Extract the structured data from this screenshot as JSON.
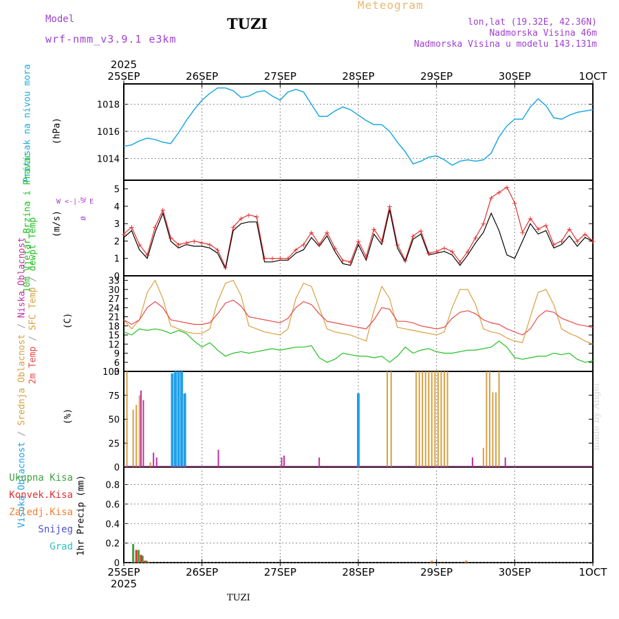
{
  "header": {
    "model_label": "Model",
    "model_name": "wrf-nmm_v3.9.1 e3km",
    "station": "TUZI",
    "title": "Meteogram",
    "lonlat": "lon,lat (19.32E, 42.36N)",
    "altitude": "Nadmorska Visina 46m",
    "model_altitude": "Nadmorska Visina u modelu 143.131m"
  },
  "footer": {
    "station": "TUZI",
    "credit": "made by Angel",
    "year": "2025"
  },
  "colors": {
    "pressure": "#20a8e0",
    "wind_speed": "#000000",
    "wind_gust": "#e03030",
    "temp_2m": "#e84848",
    "temp_sfc": "#d8a040",
    "dewpoint": "#20c020",
    "cloud_high": "#20a0e8",
    "cloud_mid": "#d8a040",
    "cloud_low": "#c030a0",
    "precip_total": "#40a040",
    "precip_conv": "#e03030",
    "precip_frz": "#f08030",
    "snow": "#5050d0",
    "hail": "#30c0c0"
  },
  "chart_data": [
    {
      "type": "line",
      "title": "Pritisak na nivou mora",
      "ylabel": "(hPa)",
      "ylim": [
        1012.4,
        1019.5
      ],
      "yticks": [
        1014,
        1016,
        1018
      ],
      "x_axis": {
        "ticks": [
          "25SEP",
          "26SEP",
          "27SEP",
          "28SEP",
          "29SEP",
          "30SEP",
          "1OCT"
        ],
        "year": "2025",
        "range_days": [
          0,
          6
        ]
      },
      "series": [
        {
          "name": "Pritisak na nivou mora",
          "x": [
            0,
            0.1,
            0.2,
            0.3,
            0.4,
            0.5,
            0.6,
            0.7,
            0.8,
            0.9,
            1.0,
            1.1,
            1.2,
            1.3,
            1.4,
            1.5,
            1.6,
            1.7,
            1.8,
            1.9,
            2.0,
            2.1,
            2.2,
            2.3,
            2.4,
            2.5,
            2.6,
            2.7,
            2.8,
            2.9,
            3.0,
            3.1,
            3.2,
            3.3,
            3.4,
            3.5,
            3.6,
            3.7,
            3.8,
            3.9,
            4.0,
            4.1,
            4.2,
            4.3,
            4.4,
            4.5,
            4.6,
            4.7,
            4.8,
            4.9,
            5.0,
            5.1,
            5.2,
            5.3,
            5.4,
            5.5,
            5.6,
            5.7,
            5.8,
            5.9,
            6.0
          ],
          "values": [
            1014.9,
            1015.0,
            1015.3,
            1015.5,
            1015.4,
            1015.2,
            1015.1,
            1015.9,
            1016.8,
            1017.6,
            1018.3,
            1018.8,
            1019.2,
            1019.2,
            1019.0,
            1018.5,
            1018.6,
            1018.9,
            1019.0,
            1018.6,
            1018.3,
            1018.9,
            1019.1,
            1018.9,
            1018.0,
            1017.1,
            1017.1,
            1017.5,
            1017.8,
            1017.6,
            1017.2,
            1016.8,
            1016.5,
            1016.5,
            1016.0,
            1015.2,
            1014.5,
            1013.6,
            1013.8,
            1014.1,
            1014.2,
            1013.9,
            1013.5,
            1013.8,
            1013.9,
            1013.8,
            1013.9,
            1014.4,
            1015.6,
            1016.4,
            1016.9,
            1016.9,
            1017.8,
            1018.4,
            1017.9,
            1017.0,
            1016.9,
            1017.2,
            1017.4,
            1017.5,
            1017.6
          ]
        }
      ]
    },
    {
      "type": "line",
      "title": "10m Vjetar Brzina i Pravac",
      "ylabel": "(m/s)",
      "ylim": [
        0,
        5.5
      ],
      "yticks": [
        0,
        1,
        2,
        3,
        4,
        5
      ],
      "compass_legend": [
        "Z",
        "W <-|-> E",
        "Ø"
      ],
      "x_axis": {
        "ticks": [
          "25SEP",
          "26SEP",
          "27SEP",
          "28SEP",
          "29SEP",
          "30SEP",
          "1OCT"
        ],
        "range_days": [
          0,
          6
        ]
      },
      "series": [
        {
          "name": "10m wind speed",
          "x": [
            0,
            0.1,
            0.2,
            0.3,
            0.4,
            0.5,
            0.6,
            0.7,
            0.8,
            0.9,
            1.0,
            1.1,
            1.2,
            1.3,
            1.4,
            1.5,
            1.6,
            1.7,
            1.8,
            1.9,
            2.0,
            2.1,
            2.2,
            2.3,
            2.4,
            2.5,
            2.6,
            2.7,
            2.8,
            2.9,
            3.0,
            3.1,
            3.2,
            3.3,
            3.4,
            3.5,
            3.6,
            3.7,
            3.8,
            3.9,
            4.0,
            4.1,
            4.2,
            4.3,
            4.4,
            4.5,
            4.6,
            4.7,
            4.8,
            4.9,
            5.0,
            5.1,
            5.2,
            5.3,
            5.4,
            5.5,
            5.6,
            5.7,
            5.8,
            5.9,
            6.0
          ],
          "values": [
            2.2,
            2.6,
            1.5,
            1.0,
            2.5,
            3.6,
            2.0,
            1.6,
            1.8,
            1.7,
            1.7,
            1.6,
            1.3,
            0.4,
            2.6,
            3.0,
            3.1,
            3.1,
            0.8,
            0.8,
            0.9,
            0.9,
            1.3,
            1.5,
            2.2,
            1.7,
            2.3,
            1.4,
            0.7,
            0.6,
            1.8,
            0.9,
            2.4,
            1.8,
            3.8,
            1.6,
            0.8,
            2.1,
            2.4,
            1.2,
            1.3,
            1.4,
            1.2,
            0.6,
            1.2,
            1.9,
            2.5,
            3.6,
            2.6,
            1.2,
            1.0,
            2.0,
            3.0,
            2.4,
            2.6,
            1.6,
            1.8,
            2.3,
            1.7,
            2.2,
            2.0
          ]
        },
        {
          "name": "10m wind gust",
          "x": [
            0,
            0.1,
            0.2,
            0.3,
            0.4,
            0.5,
            0.6,
            0.7,
            0.8,
            0.9,
            1.0,
            1.1,
            1.2,
            1.3,
            1.4,
            1.5,
            1.6,
            1.7,
            1.8,
            1.9,
            2.0,
            2.1,
            2.2,
            2.3,
            2.4,
            2.5,
            2.6,
            2.7,
            2.8,
            2.9,
            3.0,
            3.1,
            3.2,
            3.3,
            3.4,
            3.5,
            3.6,
            3.7,
            3.8,
            3.9,
            4.0,
            4.1,
            4.2,
            4.3,
            4.4,
            4.5,
            4.6,
            4.7,
            4.8,
            4.9,
            5.0,
            5.1,
            5.2,
            5.3,
            5.4,
            5.5,
            5.6,
            5.7,
            5.8,
            5.9,
            6.0
          ],
          "values": [
            2.4,
            2.8,
            1.8,
            1.2,
            2.8,
            3.8,
            2.2,
            1.8,
            1.9,
            2.0,
            1.9,
            1.8,
            1.5,
            0.5,
            2.8,
            3.3,
            3.5,
            3.4,
            1.0,
            1.0,
            1.0,
            1.0,
            1.5,
            1.8,
            2.5,
            1.8,
            2.5,
            1.6,
            0.9,
            0.8,
            2.0,
            1.1,
            2.7,
            2.0,
            4.0,
            1.8,
            0.9,
            2.3,
            2.6,
            1.3,
            1.4,
            1.6,
            1.4,
            0.8,
            1.4,
            2.2,
            3.0,
            4.5,
            4.8,
            5.1,
            4.2,
            2.5,
            3.3,
            2.7,
            2.9,
            1.8,
            2.0,
            2.7,
            2.0,
            2.4,
            2.0
          ]
        }
      ]
    },
    {
      "type": "line",
      "title": "2m Temp / SFC Temp / dewpt Temp",
      "ylabel": "(C)",
      "ylim": [
        3,
        34.5
      ],
      "yticks": [
        3,
        6,
        9,
        12,
        15,
        18,
        21,
        24,
        27,
        30,
        33
      ],
      "x_axis": {
        "ticks": [
          "25SEP",
          "26SEP",
          "27SEP",
          "28SEP",
          "29SEP",
          "30SEP",
          "1OCT"
        ],
        "range_days": [
          0,
          6
        ]
      },
      "series": [
        {
          "name": "2m Temp",
          "x": [
            0,
            0.1,
            0.2,
            0.3,
            0.4,
            0.5,
            0.6,
            0.7,
            0.8,
            0.9,
            1.0,
            1.1,
            1.2,
            1.3,
            1.4,
            1.5,
            1.6,
            1.7,
            1.8,
            1.9,
            2.0,
            2.1,
            2.2,
            2.3,
            2.4,
            2.5,
            2.6,
            2.7,
            2.8,
            2.9,
            3.0,
            3.1,
            3.2,
            3.3,
            3.4,
            3.5,
            3.6,
            3.7,
            3.8,
            3.9,
            4.0,
            4.1,
            4.2,
            4.3,
            4.4,
            4.5,
            4.6,
            4.7,
            4.8,
            4.9,
            5.0,
            5.1,
            5.2,
            5.3,
            5.4,
            5.5,
            5.6,
            5.7,
            5.8,
            5.9,
            6.0
          ],
          "values": [
            20,
            18.5,
            20,
            24,
            26,
            24,
            20,
            19.5,
            19,
            18.5,
            18.5,
            19,
            22,
            25.5,
            26.5,
            24.5,
            21,
            20.5,
            20,
            19.5,
            19,
            20.5,
            24,
            26,
            25,
            22,
            19.5,
            19,
            18.5,
            18,
            17.5,
            17,
            20,
            24,
            23.5,
            19.5,
            19.5,
            19,
            18,
            17.5,
            17,
            17.5,
            20.5,
            22.5,
            23,
            22,
            20,
            19,
            18.5,
            17,
            16,
            15,
            17,
            21,
            23,
            22.5,
            20.5,
            19.5,
            18.5,
            18,
            17.5
          ]
        },
        {
          "name": "SFC Temp",
          "x": [
            0,
            0.1,
            0.2,
            0.3,
            0.4,
            0.5,
            0.6,
            0.7,
            0.8,
            0.9,
            1.0,
            1.1,
            1.2,
            1.3,
            1.4,
            1.5,
            1.6,
            1.7,
            1.8,
            1.9,
            2.0,
            2.1,
            2.2,
            2.3,
            2.4,
            2.5,
            2.6,
            2.7,
            2.8,
            2.9,
            3.0,
            3.1,
            3.2,
            3.3,
            3.4,
            3.5,
            3.6,
            3.7,
            3.8,
            3.9,
            4.0,
            4.1,
            4.2,
            4.3,
            4.4,
            4.5,
            4.6,
            4.7,
            4.8,
            4.9,
            5.0,
            5.1,
            5.2,
            5.3,
            5.4,
            5.5,
            5.6,
            5.7,
            5.8,
            5.9,
            6.0
          ],
          "values": [
            20,
            17,
            20,
            29,
            33,
            27,
            18,
            17,
            16,
            15.5,
            15.5,
            17,
            26,
            32,
            33,
            28,
            18,
            17,
            16,
            15.5,
            15,
            17,
            27,
            32,
            31,
            24,
            17,
            16,
            15.5,
            15,
            14,
            13,
            23,
            31,
            27,
            17.5,
            17,
            16.5,
            16,
            15.5,
            15,
            16,
            24,
            30,
            30,
            25,
            17,
            16,
            15.5,
            14,
            13,
            12.5,
            21,
            29,
            30,
            25,
            17,
            15.5,
            14.5,
            13,
            12
          ]
        },
        {
          "name": "dewpt Temp",
          "x": [
            0,
            0.1,
            0.2,
            0.3,
            0.4,
            0.5,
            0.6,
            0.7,
            0.8,
            0.9,
            1.0,
            1.1,
            1.2,
            1.3,
            1.4,
            1.5,
            1.6,
            1.7,
            1.8,
            1.9,
            2.0,
            2.1,
            2.2,
            2.3,
            2.4,
            2.5,
            2.6,
            2.7,
            2.8,
            2.9,
            3.0,
            3.1,
            3.2,
            3.3,
            3.4,
            3.5,
            3.6,
            3.7,
            3.8,
            3.9,
            4.0,
            4.1,
            4.2,
            4.3,
            4.4,
            4.5,
            4.6,
            4.7,
            4.8,
            4.9,
            5.0,
            5.1,
            5.2,
            5.3,
            5.4,
            5.5,
            5.6,
            5.7,
            5.8,
            5.9,
            6.0
          ],
          "values": [
            16,
            15,
            17,
            16.5,
            17,
            16.5,
            15.5,
            16.5,
            15.5,
            13,
            11,
            12.5,
            10,
            8,
            9,
            9.5,
            9,
            9.5,
            10,
            10.5,
            10,
            10.5,
            11,
            11,
            11.5,
            7.5,
            6,
            7,
            9,
            8.5,
            8,
            8,
            7.5,
            8,
            6,
            8,
            11,
            9,
            10,
            10.5,
            9.5,
            9,
            9,
            9.5,
            10,
            10,
            10.5,
            11,
            13,
            11,
            7.5,
            7,
            7.5,
            8,
            8,
            9,
            8.5,
            9,
            7,
            6,
            6.5
          ]
        }
      ]
    },
    {
      "type": "bar",
      "title": "Visoka Oblacnost / Srednja Oblacnost / Niska Oblacnost",
      "ylabel": "(%)",
      "ylim": [
        0,
        100
      ],
      "yticks": [
        0,
        25,
        50,
        75,
        100
      ],
      "x_axis": {
        "ticks": [
          "25SEP",
          "26SEP",
          "27SEP",
          "28SEP",
          "29SEP",
          "30SEP",
          "1OCT"
        ],
        "range_days": [
          0,
          6
        ]
      },
      "series": [
        {
          "name": "Visoka Oblacnost",
          "x": [
            0.62,
            0.66,
            0.7,
            0.74,
            0.78,
            3.0
          ],
          "values": [
            98,
            100,
            100,
            100,
            77,
            77
          ]
        },
        {
          "name": "Srednja Oblacnost",
          "x": [
            0.04,
            0.12,
            0.16,
            0.2,
            0.34,
            3.37,
            3.42,
            3.74,
            3.78,
            3.82,
            3.86,
            3.9,
            3.94,
            3.98,
            4.02,
            4.06,
            4.1,
            4.14,
            4.6,
            4.64,
            4.68,
            4.72,
            4.76,
            4.8
          ],
          "values": [
            100,
            60,
            65,
            75,
            5,
            100,
            100,
            100,
            100,
            100,
            100,
            100,
            100,
            100,
            100,
            100,
            100,
            100,
            20,
            100,
            100,
            78,
            78,
            100
          ]
        },
        {
          "name": "Niska Oblacnost",
          "x": [
            0.22,
            0.25,
            0.38,
            0.42,
            1.21,
            2.02,
            2.05,
            2.5,
            4.46,
            4.88
          ],
          "values": [
            80,
            70,
            15,
            10,
            18,
            10,
            12,
            10,
            10,
            10
          ]
        }
      ]
    },
    {
      "type": "bar",
      "title": "1hr Precip",
      "ylabel": "1hr Precip (mm)",
      "ylim": [
        0,
        0.98
      ],
      "yticks": [
        0,
        0.2,
        0.4,
        0.6,
        0.8
      ],
      "x_axis": {
        "ticks": [
          "25SEP",
          "26SEP",
          "27SEP",
          "28SEP",
          "29SEP",
          "30SEP",
          "1OCT"
        ],
        "year": "2025",
        "range_days": [
          0,
          6
        ]
      },
      "legend": [
        "Ukupna Kisa",
        "Konvek.Kisa",
        "Zaledj.Kisa",
        "Snijeg",
        "Grad"
      ],
      "series": [
        {
          "name": "Ukupna Kisa",
          "x": [
            0.12,
            0.19,
            0.24,
            0.29
          ],
          "values": [
            0.19,
            0.13,
            0.07,
            0.02
          ]
        },
        {
          "name": "Konvek.Kisa",
          "x": [
            0.16,
            0.22,
            0.27
          ],
          "values": [
            0.13,
            0.08,
            0.02
          ]
        },
        {
          "name": "Zaledj.Kisa",
          "x": [
            0.32,
            3.94,
            4.38
          ],
          "values": [
            0.01,
            0.02,
            0.02
          ]
        },
        {
          "name": "Snijeg",
          "x": [],
          "values": []
        },
        {
          "name": "Grad",
          "x": [],
          "values": []
        }
      ]
    }
  ]
}
